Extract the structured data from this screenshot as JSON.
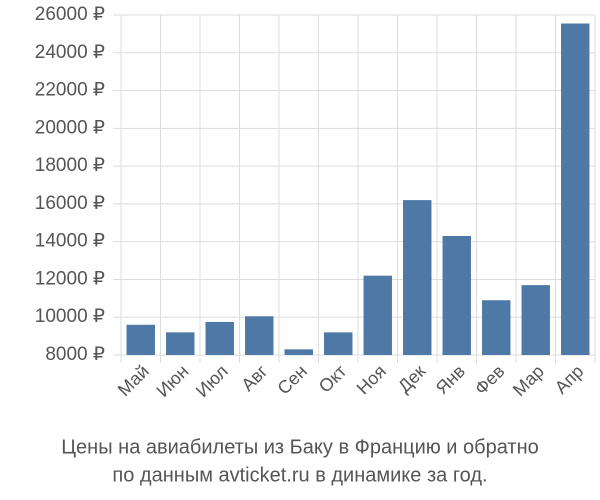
{
  "chart_data": {
    "type": "bar",
    "title": "Цены на авиабилеты из Баку в Францию и обратно",
    "subtitle": "по данным avticket.ru в динамике за год.",
    "categories": [
      "Май",
      "Июн",
      "Июл",
      "Авг",
      "Сен",
      "Окт",
      "Ноя",
      "Дек",
      "Янв",
      "Фев",
      "Мар",
      "Апр"
    ],
    "values": [
      9600,
      9200,
      9750,
      10050,
      8300,
      9200,
      12200,
      16200,
      14300,
      10900,
      11700,
      25550
    ],
    "color": "#4e79a7",
    "ylim": [
      8000,
      26000
    ],
    "yticks": [
      {
        "value": 8000,
        "label": "8000 ₽"
      },
      {
        "value": 10000,
        "label": "10000 ₽"
      },
      {
        "value": 12000,
        "label": "12000 ₽"
      },
      {
        "value": 14000,
        "label": "14000 ₽"
      },
      {
        "value": 16000,
        "label": "16000 ₽"
      },
      {
        "value": 18000,
        "label": "18000 ₽"
      },
      {
        "value": 20000,
        "label": "20000 ₽"
      },
      {
        "value": 22000,
        "label": "22000 ₽"
      },
      {
        "value": 24000,
        "label": "24000 ₽"
      },
      {
        "value": 26000,
        "label": "26000 ₽"
      }
    ],
    "grid": true
  }
}
